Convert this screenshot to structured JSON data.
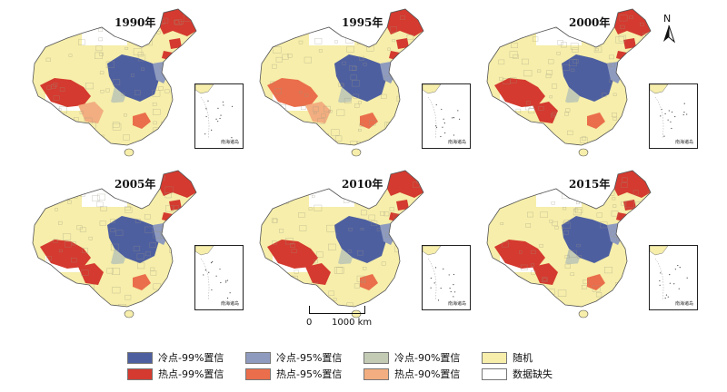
{
  "panels": [
    {
      "year_label": "1990年",
      "west_hotspot": "hot99",
      "west_secondary": "hot90",
      "inset_caption": "南海诸岛"
    },
    {
      "year_label": "1995年",
      "west_hotspot": "hot95",
      "west_secondary": "hot90",
      "inset_caption": "南海诸岛"
    },
    {
      "year_label": "2000年",
      "west_hotspot": "hot99",
      "west_secondary": "hot99",
      "inset_caption": "南海诸岛"
    },
    {
      "year_label": "2005年",
      "west_hotspot": "hot99",
      "west_secondary": "hot99",
      "inset_caption": "南海诸岛"
    },
    {
      "year_label": "2010年",
      "west_hotspot": "hot99",
      "west_secondary": "hot99",
      "inset_caption": "南海诸岛"
    },
    {
      "year_label": "2015年",
      "west_hotspot": "hot99",
      "west_secondary": "hot99",
      "inset_caption": "南海诸岛"
    }
  ],
  "north_arrow": {
    "label": "N"
  },
  "scale_bar": {
    "start_label": "0",
    "end_label": "1000 km"
  },
  "legend": {
    "items": [
      {
        "key": "cold99",
        "label": "冷点-99%置信"
      },
      {
        "key": "cold95",
        "label": "冷点-95%置信"
      },
      {
        "key": "cold90",
        "label": "冷点-90%置信"
      },
      {
        "key": "random",
        "label": "随机"
      },
      {
        "key": "hot99",
        "label": "热点-99%置信"
      },
      {
        "key": "hot95",
        "label": "热点-95%置信"
      },
      {
        "key": "hot90",
        "label": "热点-90%置信"
      },
      {
        "key": "nodata",
        "label": "数据缺失"
      }
    ]
  },
  "colors": {
    "cold99": "#4e5fa0",
    "cold95": "#8f9bbe",
    "cold90": "#c3cbb4",
    "random": "#f6eeaa",
    "hot99": "#d43a2f",
    "hot95": "#ea6e4b",
    "hot90": "#f2ae80",
    "nodata": "#ffffff"
  }
}
